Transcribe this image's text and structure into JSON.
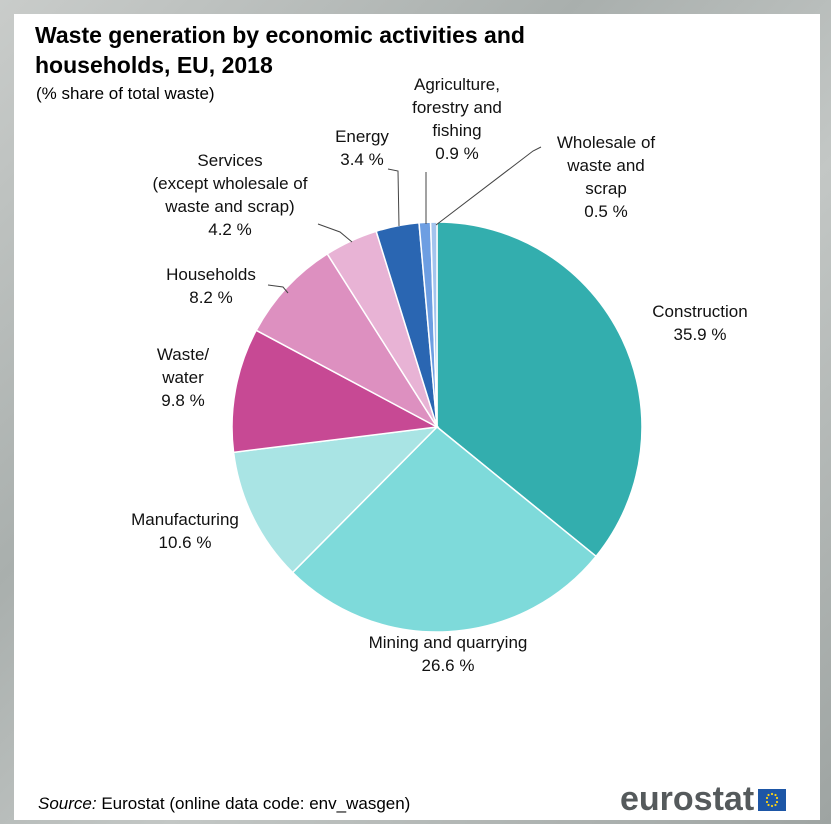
{
  "title": "Waste generation by economic activities and households, EU, 2018",
  "subtitle": "(% share of total waste)",
  "source": {
    "label": "Source:",
    "text": " Eurostat (online data code: env_wasgen)"
  },
  "logo": {
    "text": "eurostat"
  },
  "colors": {
    "construction": "#33aeae",
    "mining": "#7edada",
    "manufacturing": "#a9e4e4",
    "waste_water": "#c74994",
    "households": "#dd90c0",
    "services": "#e8b3d5",
    "energy": "#2a66b2",
    "agriculture": "#6d9ee2",
    "wholesale": "#a3c4ee"
  },
  "chart_data": {
    "type": "pie",
    "title": "Waste generation by economic activities and households, EU, 2018",
    "subtitle": "(% share of total waste)",
    "slices": [
      {
        "key": "construction",
        "label_lines": [
          "Construction",
          "35.9 %"
        ],
        "value": 35.9
      },
      {
        "key": "mining",
        "label_lines": [
          "Mining and quarrying",
          "26.6 %"
        ],
        "value": 26.6
      },
      {
        "key": "manufacturing",
        "label_lines": [
          "Manufacturing",
          "10.6 %"
        ],
        "value": 10.6
      },
      {
        "key": "waste_water",
        "label_lines": [
          "Waste/",
          "water",
          "9.8 %"
        ],
        "value": 9.8
      },
      {
        "key": "households",
        "label_lines": [
          "Households",
          "8.2 %"
        ],
        "value": 8.2
      },
      {
        "key": "services",
        "label_lines": [
          "Services",
          "(except wholesale of",
          "waste and scrap)",
          "4.2 %"
        ],
        "value": 4.2
      },
      {
        "key": "energy",
        "label_lines": [
          "Energy",
          "3.4 %"
        ],
        "value": 3.4
      },
      {
        "key": "agriculture",
        "label_lines": [
          "Agriculture,",
          "forestry and",
          "fishing",
          "0.9 %"
        ],
        "value": 0.9
      },
      {
        "key": "wholesale",
        "label_lines": [
          "Wholesale of",
          "waste and",
          "scrap",
          "0.5 %"
        ],
        "value": 0.5
      }
    ]
  }
}
